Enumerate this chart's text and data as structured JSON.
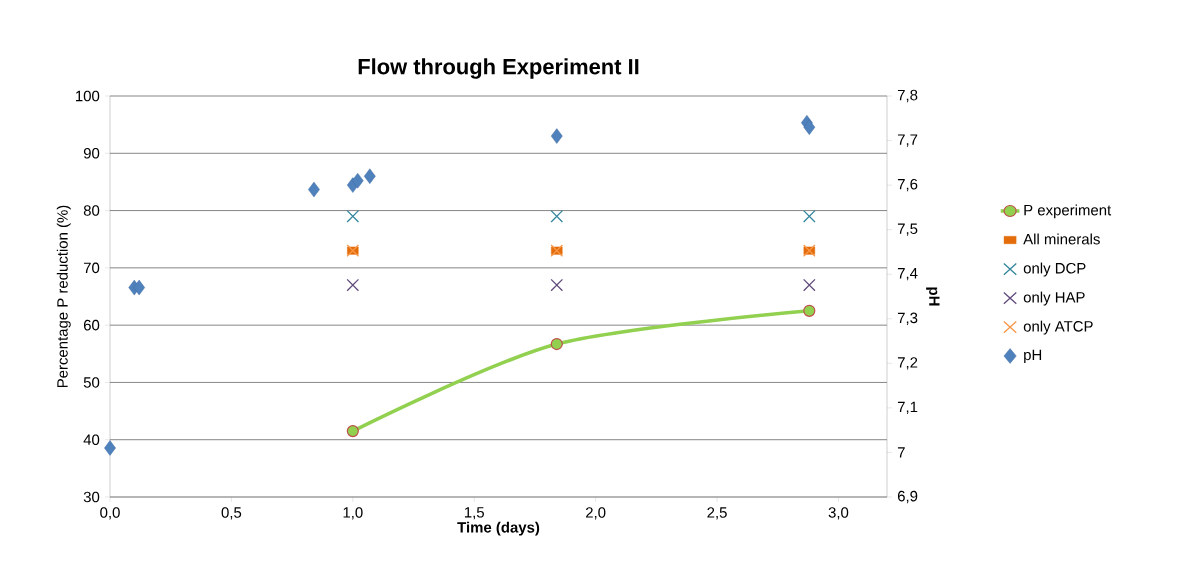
{
  "chart_data": {
    "type": "scatter",
    "title": "Flow through Experiment II",
    "xlabel": "Time (days)",
    "ylabel": "Percentage P reduction (%)",
    "y2label": "pH",
    "xlim": [
      0,
      3.2
    ],
    "xticks": [
      {
        "value": 0,
        "label": "0,0"
      },
      {
        "value": 0.5,
        "label": "0,5"
      },
      {
        "value": 1,
        "label": "1,0"
      },
      {
        "value": 1.5,
        "label": "1,5"
      },
      {
        "value": 2,
        "label": "2,0"
      },
      {
        "value": 2.5,
        "label": "2,5"
      },
      {
        "value": 3,
        "label": "3,0"
      }
    ],
    "ylim": [
      30,
      100
    ],
    "yticks": [
      30,
      40,
      50,
      60,
      70,
      80,
      90,
      100
    ],
    "y2lim": [
      6.9,
      7.8
    ],
    "y2ticks": [
      {
        "value": 6.9,
        "label": "6,9"
      },
      7,
      {
        "value": 7.1,
        "label": "7,1"
      },
      {
        "value": 7.2,
        "label": "7,2"
      },
      {
        "value": 7.3,
        "label": "7,3"
      },
      {
        "value": 7.4,
        "label": "7,4"
      },
      {
        "value": 7.5,
        "label": "7,5"
      },
      {
        "value": 7.6,
        "label": "7,6"
      },
      {
        "value": 7.7,
        "label": "7,7"
      },
      {
        "value": 7.8,
        "label": "7,8"
      }
    ],
    "grid": "y",
    "legend": "right",
    "series": [
      {
        "name": "P experiment",
        "type": "line",
        "marker": "circle",
        "color": "#92d050",
        "x": [
          1.0,
          1.84,
          2.88
        ],
        "values": [
          41.5,
          56.7,
          62.5
        ]
      },
      {
        "name": "All minerals",
        "marker": "square",
        "color": "#e46c0a",
        "x": [
          1.0,
          1.84,
          2.88
        ],
        "values": [
          73,
          73,
          73
        ]
      },
      {
        "name": "only DCP",
        "marker": "cross",
        "color": "#31859c",
        "x": [
          1.0,
          1.84,
          2.88
        ],
        "values": [
          79,
          79,
          79
        ]
      },
      {
        "name": "only HAP",
        "marker": "cross",
        "color": "#604a7b",
        "x": [
          1.0,
          1.84,
          2.88
        ],
        "values": [
          67,
          67,
          67
        ]
      },
      {
        "name": "only ATCP",
        "marker": "cross",
        "color": "#f79646",
        "x": [
          1.0,
          1.84,
          2.88
        ],
        "values": [
          73,
          73,
          73
        ]
      },
      {
        "name": "pH",
        "marker": "diamond",
        "color": "#4f81bd",
        "axis": "y2",
        "x": [
          0,
          0.1,
          0.12,
          0.84,
          1.0,
          1.02,
          1.07,
          1.84,
          2.87,
          2.88
        ],
        "values": [
          7.01,
          7.37,
          7.37,
          7.59,
          7.6,
          7.61,
          7.62,
          7.71,
          7.74,
          7.73
        ]
      }
    ]
  }
}
